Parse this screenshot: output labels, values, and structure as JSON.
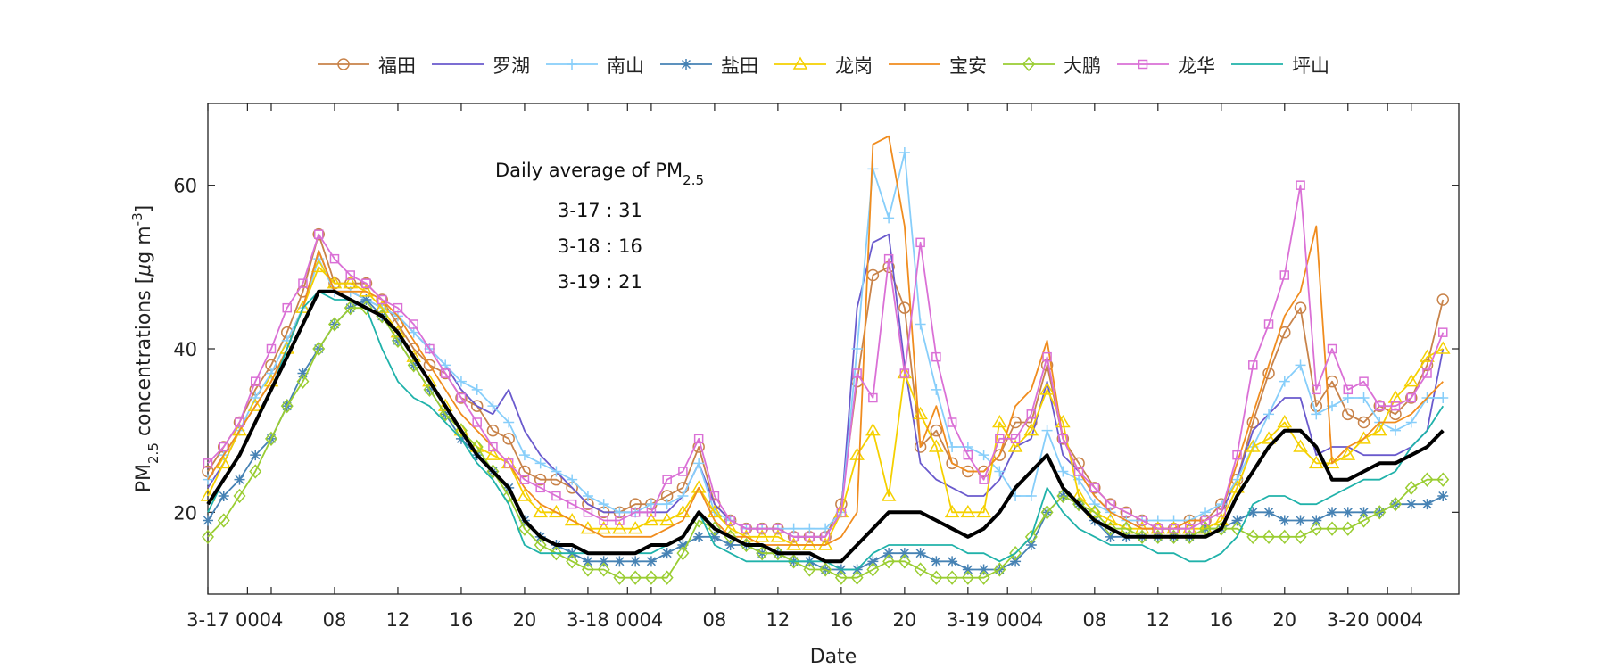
{
  "chart_data": {
    "type": "line",
    "xlabel": "Date",
    "ylabel": {
      "main": "PM",
      "sub": "2.5",
      "rest": " concentrations [",
      "mu": "μ",
      "unit": "g m",
      "sup": "-3",
      "close": "]"
    },
    "ylim": [
      10,
      70
    ],
    "yticks": [
      20,
      40,
      60
    ],
    "x_hours_range": [
      0,
      79
    ],
    "xticks": [
      {
        "x": 0,
        "label": "3-17"
      },
      {
        "x": 2.5,
        "label": "00"
      },
      {
        "x": 4,
        "label": "04"
      },
      {
        "x": 8,
        "label": "08"
      },
      {
        "x": 12,
        "label": "12"
      },
      {
        "x": 16,
        "label": "16"
      },
      {
        "x": 20,
        "label": "20"
      },
      {
        "x": 24,
        "label": "3-18"
      },
      {
        "x": 26.5,
        "label": "00"
      },
      {
        "x": 28,
        "label": "04"
      },
      {
        "x": 32,
        "label": "08"
      },
      {
        "x": 36,
        "label": "12"
      },
      {
        "x": 40,
        "label": "16"
      },
      {
        "x": 44,
        "label": "20"
      },
      {
        "x": 48,
        "label": "3-19"
      },
      {
        "x": 50.5,
        "label": "00"
      },
      {
        "x": 52,
        "label": "04"
      },
      {
        "x": 56,
        "label": "08"
      },
      {
        "x": 60,
        "label": "12"
      },
      {
        "x": 64,
        "label": "16"
      },
      {
        "x": 68,
        "label": "20"
      },
      {
        "x": 72,
        "label": "3-20"
      },
      {
        "x": 74.5,
        "label": "00"
      },
      {
        "x": 76,
        "label": "04"
      }
    ],
    "annotation": {
      "title": "Daily average of PM",
      "title_sub": "2.5",
      "lines": [
        "3-17 : 31",
        "3-18 : 16",
        "3-19 : 21"
      ]
    },
    "legend_position": "top",
    "series": [
      {
        "name": "福田",
        "color": "#c8834a",
        "marker": "circle",
        "values": [
          25,
          28,
          31,
          35,
          38,
          42,
          47,
          54,
          48,
          48,
          48,
          46,
          43,
          40,
          38,
          37,
          34,
          33,
          30,
          29,
          25,
          24,
          24,
          23,
          21,
          20,
          20,
          21,
          21,
          22,
          23,
          28,
          21,
          19,
          18,
          18,
          18,
          17,
          17,
          17,
          21,
          36,
          49,
          50,
          45,
          28,
          30,
          26,
          25,
          25,
          27,
          31,
          31,
          38,
          29,
          26,
          23,
          21,
          20,
          19,
          18,
          18,
          19,
          19,
          21,
          24,
          31,
          37,
          42,
          45,
          33,
          36,
          32,
          31,
          33,
          32,
          34,
          38,
          46
        ]
      },
      {
        "name": "罗湖",
        "color": "#6a5acd",
        "marker": "none",
        "values": [
          23,
          26,
          30,
          33,
          36,
          40,
          45,
          52,
          47,
          47,
          46,
          45,
          44,
          42,
          40,
          38,
          35,
          33,
          32,
          35,
          30,
          27,
          25,
          23,
          21,
          20,
          20,
          20,
          20,
          20,
          22,
          26,
          21,
          19,
          18,
          18,
          18,
          17,
          17,
          17,
          20,
          45,
          53,
          54,
          38,
          26,
          24,
          23,
          22,
          22,
          24,
          28,
          29,
          36,
          27,
          25,
          22,
          20,
          19,
          18,
          18,
          18,
          18,
          19,
          20,
          24,
          30,
          32,
          34,
          34,
          27,
          28,
          28,
          27,
          27,
          27,
          28,
          30,
          40
        ]
      },
      {
        "name": "南山",
        "color": "#87cefa",
        "marker": "plus",
        "values": [
          24,
          27,
          30,
          34,
          37,
          41,
          45,
          51,
          47,
          47,
          46,
          45,
          44,
          42,
          40,
          38,
          36,
          35,
          33,
          31,
          27,
          26,
          25,
          24,
          22,
          21,
          20,
          20,
          21,
          21,
          22,
          26,
          20,
          19,
          18,
          18,
          18,
          18,
          18,
          18,
          20,
          40,
          62,
          56,
          64,
          43,
          35,
          28,
          28,
          27,
          25,
          22,
          22,
          30,
          25,
          24,
          21,
          20,
          19,
          19,
          19,
          19,
          19,
          20,
          21,
          24,
          28,
          32,
          36,
          38,
          32,
          33,
          34,
          34,
          31,
          30,
          31,
          34,
          34
        ]
      },
      {
        "name": "盐田",
        "color": "#4682b4",
        "marker": "asterisk",
        "values": [
          19,
          22,
          24,
          27,
          29,
          33,
          37,
          40,
          43,
          45,
          46,
          44,
          41,
          38,
          35,
          32,
          29,
          27,
          25,
          23,
          19,
          17,
          16,
          15,
          14,
          14,
          14,
          14,
          14,
          15,
          16,
          17,
          17,
          16,
          16,
          15,
          15,
          14,
          14,
          13,
          13,
          13,
          14,
          15,
          15,
          15,
          14,
          14,
          13,
          13,
          13,
          14,
          16,
          20,
          22,
          21,
          19,
          17,
          17,
          17,
          17,
          17,
          17,
          18,
          18,
          19,
          20,
          20,
          19,
          19,
          19,
          20,
          20,
          20,
          20,
          21,
          21,
          21,
          22
        ]
      },
      {
        "name": "龙岗",
        "color": "#f5d000",
        "marker": "triangle",
        "values": [
          22,
          26,
          30,
          33,
          36,
          40,
          45,
          50,
          48,
          48,
          47,
          45,
          42,
          39,
          36,
          33,
          30,
          28,
          27,
          26,
          22,
          20,
          20,
          19,
          18,
          18,
          18,
          18,
          19,
          19,
          20,
          23,
          20,
          18,
          17,
          17,
          17,
          16,
          16,
          16,
          20,
          27,
          30,
          22,
          37,
          32,
          28,
          20,
          20,
          20,
          31,
          28,
          30,
          35,
          31,
          22,
          20,
          19,
          18,
          18,
          18,
          18,
          18,
          18,
          19,
          23,
          28,
          29,
          31,
          28,
          26,
          26,
          27,
          29,
          30,
          34,
          36,
          39,
          40
        ]
      },
      {
        "name": "宝安",
        "color": "#f08c1e",
        "marker": "none",
        "values": [
          24,
          27,
          30,
          33,
          36,
          40,
          45,
          52,
          47,
          47,
          47,
          46,
          44,
          41,
          38,
          35,
          32,
          30,
          28,
          26,
          23,
          21,
          20,
          19,
          18,
          17,
          17,
          17,
          17,
          18,
          19,
          23,
          19,
          17,
          17,
          16,
          16,
          16,
          16,
          16,
          17,
          20,
          65,
          66,
          55,
          28,
          33,
          26,
          25,
          25,
          27,
          33,
          35,
          41,
          29,
          25,
          22,
          20,
          19,
          18,
          18,
          18,
          19,
          19,
          20,
          26,
          32,
          38,
          44,
          47,
          55,
          26,
          28,
          29,
          31,
          31,
          32,
          34,
          36
        ]
      },
      {
        "name": "大鹏",
        "color": "#9acd32",
        "marker": "diamond",
        "values": [
          17,
          19,
          22,
          25,
          29,
          33,
          36,
          40,
          43,
          45,
          45,
          44,
          41,
          38,
          35,
          32,
          30,
          28,
          25,
          22,
          18,
          16,
          15,
          14,
          13,
          13,
          12,
          12,
          12,
          12,
          15,
          19,
          18,
          17,
          16,
          15,
          15,
          14,
          13,
          13,
          12,
          12,
          13,
          14,
          14,
          13,
          12,
          12,
          12,
          12,
          13,
          15,
          17,
          20,
          22,
          21,
          20,
          18,
          18,
          17,
          17,
          17,
          17,
          18,
          18,
          18,
          17,
          17,
          17,
          17,
          18,
          18,
          18,
          19,
          20,
          21,
          23,
          24,
          24
        ]
      },
      {
        "name": "龙华",
        "color": "#da70d6",
        "marker": "square",
        "values": [
          26,
          28,
          31,
          36,
          40,
          45,
          48,
          54,
          51,
          49,
          48,
          46,
          45,
          43,
          40,
          37,
          34,
          31,
          28,
          26,
          24,
          23,
          22,
          21,
          20,
          19,
          19,
          20,
          20,
          24,
          25,
          29,
          22,
          19,
          18,
          18,
          18,
          17,
          17,
          17,
          20,
          37,
          34,
          51,
          37,
          53,
          39,
          31,
          27,
          24,
          29,
          29,
          32,
          39,
          29,
          25,
          23,
          21,
          20,
          19,
          18,
          18,
          18,
          19,
          20,
          27,
          38,
          43,
          49,
          60,
          35,
          40,
          35,
          36,
          33,
          33,
          34,
          37,
          42
        ]
      },
      {
        "name": "坪山",
        "color": "#20b2aa",
        "marker": "none",
        "values": [
          20,
          24,
          27,
          31,
          35,
          40,
          45,
          47,
          46,
          46,
          45,
          40,
          36,
          34,
          33,
          31,
          29,
          26,
          24,
          21,
          16,
          15,
          15,
          15,
          15,
          15,
          15,
          15,
          15,
          16,
          17,
          20,
          16,
          15,
          14,
          14,
          14,
          14,
          14,
          14,
          13,
          13,
          15,
          16,
          16,
          16,
          16,
          16,
          15,
          15,
          14,
          15,
          17,
          23,
          20,
          18,
          17,
          16,
          16,
          16,
          15,
          15,
          14,
          14,
          15,
          17,
          21,
          22,
          22,
          21,
          21,
          22,
          23,
          24,
          24,
          25,
          28,
          30,
          33
        ]
      },
      {
        "name": "",
        "color": "#000000",
        "marker": "none",
        "thick": true,
        "values": [
          21,
          24,
          27,
          31,
          35,
          39,
          43,
          47,
          47,
          46,
          45,
          44,
          42,
          39,
          36,
          33,
          30,
          27,
          25,
          23,
          19,
          17,
          16,
          16,
          15,
          15,
          15,
          15,
          16,
          16,
          17,
          20,
          18,
          17,
          16,
          16,
          15,
          15,
          15,
          14,
          14,
          16,
          18,
          20,
          20,
          20,
          19,
          18,
          17,
          18,
          20,
          23,
          25,
          27,
          23,
          21,
          19,
          18,
          17,
          17,
          17,
          17,
          17,
          17,
          18,
          22,
          25,
          28,
          30,
          30,
          28,
          24,
          24,
          25,
          26,
          26,
          27,
          28,
          30
        ]
      }
    ]
  }
}
